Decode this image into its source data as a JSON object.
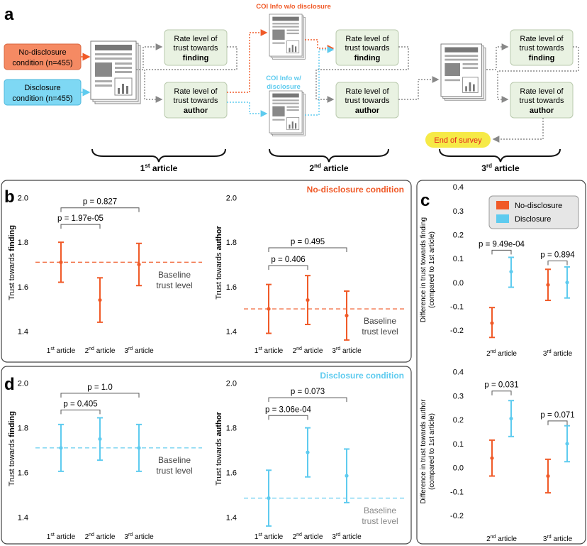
{
  "colors": {
    "orange": "#f05a28",
    "blue": "#5ecbef",
    "box_fill": "#e9f2e2",
    "box_stroke": "#b9c9ad",
    "orange_box": "#f58a63",
    "blue_box": "#7ed8f4",
    "end_fill": "#f6ea47",
    "end_text": "#e2261f",
    "gray_arrow": "#888888"
  },
  "panel_a": {
    "letter": "a",
    "no_disclosure_line1": "No-disclosure",
    "no_disclosure_line2": "condition (n=455)",
    "disclosure_line1": "Disclosure",
    "disclosure_line2": "condition (n=455)",
    "rate_line1": "Rate level of",
    "rate_line2": "trust towards",
    "finding": "finding",
    "author": "author",
    "coi_without_line1": "COI Info w/o disclosure",
    "coi_with_line1": "COI Info w/",
    "coi_with_line2": "disclosure",
    "end_of_survey": "End of survey",
    "articles": [
      {
        "num": "1",
        "sup": "st",
        "label": "article"
      },
      {
        "num": "2",
        "sup": "nd",
        "label": "article"
      },
      {
        "num": "3",
        "sup": "rd",
        "label": "article"
      }
    ]
  },
  "panel_b": {
    "letter": "b",
    "condition_label": "No-disclosure condition",
    "baseline_line1": "Baseline",
    "baseline_line2": "trust level",
    "finding_ylabel_prefix": "Trust towards ",
    "finding_ylabel_bold": "finding",
    "author_ylabel_prefix": "Trust towards ",
    "author_ylabel_bold": "author"
  },
  "panel_c": {
    "letter": "c",
    "legend": [
      "No-disclosure",
      "Disclosure"
    ],
    "top_ylabel_line1": "Difference in trust towards finding",
    "top_ylabel_line2": "(compared to 1st article)",
    "bottom_ylabel_line1": "Difference in trust towards author",
    "bottom_ylabel_line2": "(compared to 1st article)"
  },
  "panel_d": {
    "letter": "d",
    "condition_label": "Disclosure condition",
    "baseline_line1": "Baseline",
    "baseline_line2": "trust level"
  },
  "x_ticks_three": [
    {
      "num": "1",
      "sup": "st",
      "label": " article"
    },
    {
      "num": "2",
      "sup": "nd",
      "label": " article"
    },
    {
      "num": "3",
      "sup": "rd",
      "label": " article"
    }
  ],
  "x_ticks_two": [
    {
      "num": "2",
      "sup": "nd",
      "label": " article"
    },
    {
      "num": "3",
      "sup": "rd",
      "label": " article"
    }
  ],
  "chart_data": [
    {
      "id": "b-finding",
      "type": "errorbar",
      "condition": "No-disclosure",
      "ylabel": "Trust towards finding",
      "ylim": [
        1.35,
        2.05
      ],
      "yticks": [
        "1.4",
        "1.6",
        "1.8",
        "2.0"
      ],
      "categories": [
        "1st article",
        "2nd article",
        "3rd article"
      ],
      "series": [
        {
          "name": "No-disclosure",
          "color": "orange",
          "mean": [
            1.71,
            1.54,
            1.7
          ],
          "lower": [
            1.62,
            1.44,
            1.605
          ],
          "upper": [
            1.8,
            1.64,
            1.795
          ]
        }
      ],
      "baseline": 1.71,
      "pvalues": [
        {
          "from": 0,
          "to": 1,
          "label": "p = 1.97e-05",
          "level": 1.88
        },
        {
          "from": 0,
          "to": 2,
          "label": "p = 0.827",
          "level": 1.955
        }
      ]
    },
    {
      "id": "b-author",
      "type": "errorbar",
      "condition": "No-disclosure",
      "ylabel": "Trust towards author",
      "ylim": [
        1.35,
        2.05
      ],
      "yticks": [
        "1.4",
        "1.6",
        "1.8",
        "2.0"
      ],
      "categories": [
        "1st article",
        "2nd article",
        "3rd article"
      ],
      "series": [
        {
          "name": "No-disclosure",
          "color": "orange",
          "mean": [
            1.5,
            1.54,
            1.47
          ],
          "lower": [
            1.39,
            1.43,
            1.36
          ],
          "upper": [
            1.61,
            1.65,
            1.58
          ]
        }
      ],
      "baseline": 1.5,
      "pvalues": [
        {
          "from": 0,
          "to": 1,
          "label": "p = 0.406",
          "level": 1.695
        },
        {
          "from": 0,
          "to": 2,
          "label": "p = 0.495",
          "level": 1.775
        }
      ]
    },
    {
      "id": "d-finding",
      "type": "errorbar",
      "condition": "Disclosure",
      "ylabel": "Trust towards finding",
      "ylim": [
        1.35,
        2.05
      ],
      "yticks": [
        "1.4",
        "1.6",
        "1.8",
        "2.0"
      ],
      "categories": [
        "1st article",
        "2nd article",
        "3rd article"
      ],
      "series": [
        {
          "name": "Disclosure",
          "color": "blue",
          "mean": [
            1.71,
            1.75,
            1.71
          ],
          "lower": [
            1.605,
            1.655,
            1.605
          ],
          "upper": [
            1.815,
            1.845,
            1.815
          ]
        }
      ],
      "baseline": 1.71,
      "pvalues": [
        {
          "from": 0,
          "to": 1,
          "label": "p = 0.405",
          "level": 1.88
        },
        {
          "from": 0,
          "to": 2,
          "label": "p = 1.0",
          "level": 1.955
        }
      ]
    },
    {
      "id": "d-author",
      "type": "errorbar",
      "condition": "Disclosure",
      "ylabel": "Trust towards author",
      "ylim": [
        1.35,
        2.05
      ],
      "yticks": [
        "1.4",
        "1.6",
        "1.8",
        "2.0"
      ],
      "categories": [
        "1st article",
        "2nd article",
        "3rd article"
      ],
      "series": [
        {
          "name": "Disclosure",
          "color": "blue",
          "mean": [
            1.485,
            1.69,
            1.585
          ],
          "lower": [
            1.36,
            1.58,
            1.465
          ],
          "upper": [
            1.61,
            1.8,
            1.705
          ]
        }
      ],
      "baseline": 1.485,
      "pvalues": [
        {
          "from": 0,
          "to": 1,
          "label": "p = 3.06e-04",
          "level": 1.855
        },
        {
          "from": 0,
          "to": 2,
          "label": "p = 0.073",
          "level": 1.935
        }
      ]
    },
    {
      "id": "c-finding",
      "type": "errorbar",
      "ylabel": "Difference in trust towards finding (compared to 1st article)",
      "ylim": [
        -0.25,
        0.43
      ],
      "yticks": [
        "-0.2",
        "-0.1",
        "0.0",
        "0.1",
        "0.2",
        "0.3",
        "0.4"
      ],
      "categories": [
        "2nd article",
        "3rd article"
      ],
      "series": [
        {
          "name": "No-disclosure",
          "color": "orange",
          "mean": [
            -0.17,
            -0.01
          ],
          "lower": [
            -0.23,
            -0.075
          ],
          "upper": [
            -0.105,
            0.055
          ]
        },
        {
          "name": "Disclosure",
          "color": "blue",
          "mean": [
            0.045,
            0.0
          ],
          "lower": [
            -0.02,
            -0.065
          ],
          "upper": [
            0.105,
            0.065
          ]
        }
      ],
      "pvalues": [
        {
          "group": 0,
          "label": "p = 9.49e-04",
          "level": 0.135
        },
        {
          "group": 1,
          "label": "p = 0.894",
          "level": 0.09
        }
      ]
    },
    {
      "id": "c-author",
      "type": "errorbar",
      "ylabel": "Difference in trust towards author (compared to 1st article)",
      "ylim": [
        -0.25,
        0.42
      ],
      "yticks": [
        "-0.2",
        "-0.1",
        "0.0",
        "0.1",
        "0.2",
        "0.3",
        "0.4"
      ],
      "categories": [
        "2nd article",
        "3rd article"
      ],
      "series": [
        {
          "name": "No-disclosure",
          "color": "orange",
          "mean": [
            0.04,
            -0.035
          ],
          "lower": [
            -0.035,
            -0.105
          ],
          "upper": [
            0.115,
            0.035
          ]
        },
        {
          "name": "Disclosure",
          "color": "blue",
          "mean": [
            0.205,
            0.1
          ],
          "lower": [
            0.13,
            0.025
          ],
          "upper": [
            0.28,
            0.175
          ]
        }
      ],
      "pvalues": [
        {
          "group": 0,
          "label": "p = 0.031",
          "level": 0.32
        },
        {
          "group": 1,
          "label": "p = 0.071",
          "level": 0.195
        }
      ]
    }
  ]
}
